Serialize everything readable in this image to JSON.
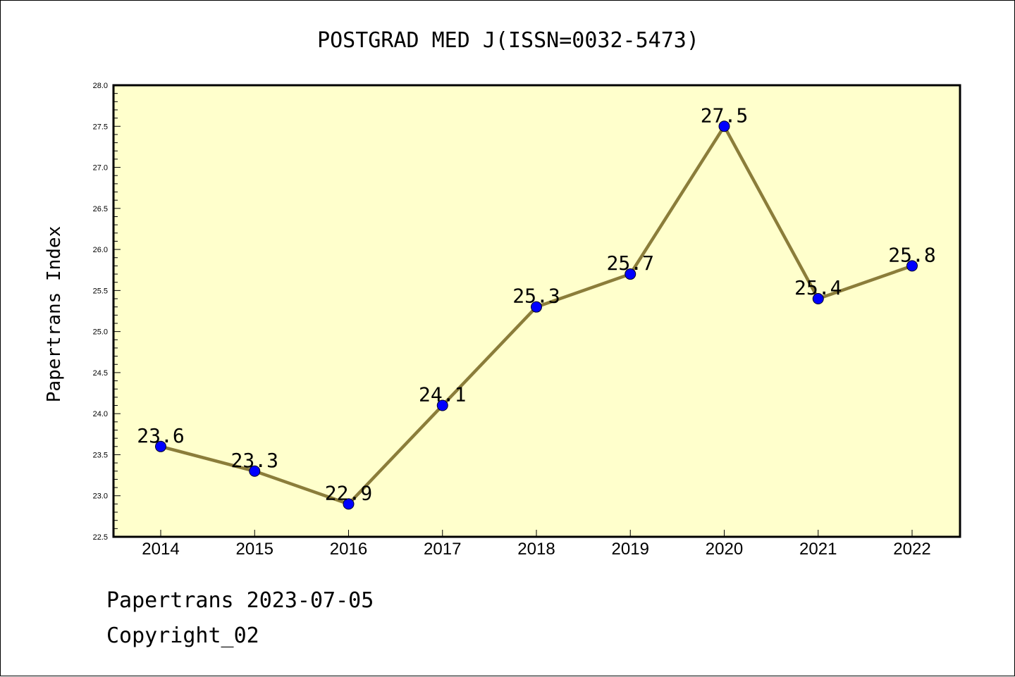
{
  "chart_data": {
    "type": "line",
    "title": "POSTGRAD MED J(ISSN=0032-5473)",
    "xlabel": "",
    "ylabel": "Papertrans Index",
    "categories": [
      "2014",
      "2015",
      "2016",
      "2017",
      "2018",
      "2019",
      "2020",
      "2021",
      "2022"
    ],
    "values": [
      23.6,
      23.3,
      22.9,
      24.1,
      25.3,
      25.7,
      27.5,
      25.4,
      25.8
    ],
    "data_labels": [
      "23.6",
      "23.3",
      "22.9",
      "24.1",
      "25.3",
      "25.7",
      "27.5",
      "25.4",
      "25.8"
    ],
    "ylim": [
      22.5,
      28.0
    ],
    "yticks": [
      22.5,
      23.0,
      23.5,
      24.0,
      24.5,
      25.0,
      25.5,
      26.0,
      26.5,
      27.0,
      27.5,
      28.0
    ],
    "ytick_labels": [
      "22.5",
      "23.0",
      "23.5",
      "24.0",
      "24.5",
      "25.0",
      "25.5",
      "26.0",
      "26.5",
      "27.0",
      "27.5",
      "28.0"
    ],
    "grid": false,
    "legend": "none",
    "colors": {
      "plot_background": "#ffffcc",
      "line": "#8b7d3a",
      "marker": "#0000ff",
      "axis": "#000000"
    }
  },
  "footer": {
    "line1": "Papertrans 2023-07-05",
    "line2": "Copyright_02"
  }
}
